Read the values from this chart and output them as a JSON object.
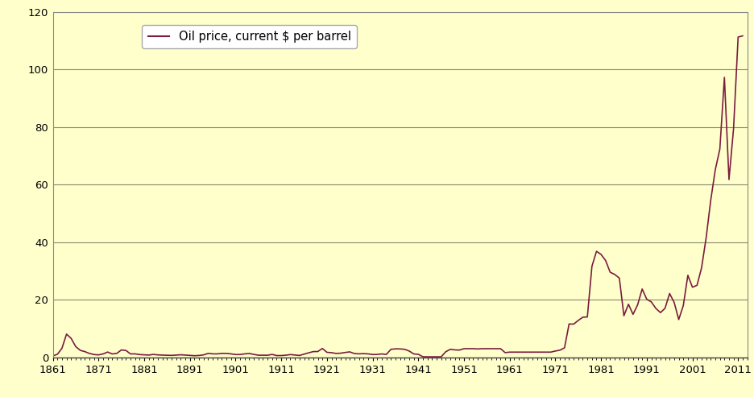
{
  "legend_label": "Oil price, current $ per barrel",
  "line_color": "#7B1C3E",
  "background_color": "#FFFFCC",
  "grid_color": "#888870",
  "ylim": [
    0,
    120
  ],
  "yticks": [
    0,
    20,
    40,
    60,
    80,
    100,
    120
  ],
  "xlim": [
    1861,
    2013
  ],
  "xtick_positions": [
    1861,
    1871,
    1881,
    1891,
    1901,
    1911,
    1921,
    1931,
    1941,
    1951,
    1961,
    1971,
    1981,
    1991,
    2001,
    2011
  ],
  "xtick_labels": [
    "1861",
    "1871",
    "1881",
    "1891",
    "1901",
    "1911",
    "1921",
    "1931",
    "1941",
    "1951",
    "1961",
    "1971",
    "1981",
    "1991",
    "2001",
    "2011"
  ],
  "years": [
    1861,
    1862,
    1863,
    1864,
    1865,
    1866,
    1867,
    1868,
    1869,
    1870,
    1871,
    1872,
    1873,
    1874,
    1875,
    1876,
    1877,
    1878,
    1879,
    1880,
    1881,
    1882,
    1883,
    1884,
    1885,
    1886,
    1887,
    1888,
    1889,
    1890,
    1891,
    1892,
    1893,
    1894,
    1895,
    1896,
    1897,
    1898,
    1899,
    1900,
    1901,
    1902,
    1903,
    1904,
    1905,
    1906,
    1907,
    1908,
    1909,
    1910,
    1911,
    1912,
    1913,
    1914,
    1915,
    1916,
    1917,
    1918,
    1919,
    1920,
    1921,
    1922,
    1923,
    1924,
    1925,
    1926,
    1927,
    1928,
    1929,
    1930,
    1931,
    1932,
    1933,
    1934,
    1935,
    1936,
    1937,
    1938,
    1939,
    1940,
    1941,
    1942,
    1943,
    1944,
    1945,
    1946,
    1947,
    1948,
    1949,
    1950,
    1951,
    1952,
    1953,
    1954,
    1955,
    1956,
    1957,
    1958,
    1959,
    1960,
    1961,
    1962,
    1963,
    1964,
    1965,
    1966,
    1967,
    1968,
    1969,
    1970,
    1971,
    1972,
    1973,
    1974,
    1975,
    1976,
    1977,
    1978,
    1979,
    1980,
    1981,
    1982,
    1983,
    1984,
    1985,
    1986,
    1987,
    1988,
    1989,
    1990,
    1991,
    1992,
    1993,
    1994,
    1995,
    1996,
    1997,
    1998,
    1999,
    2000,
    2001,
    2002,
    2003,
    2004,
    2005,
    2006,
    2007,
    2008,
    2009,
    2010,
    2011,
    2012
  ],
  "prices": [
    0.49,
    1.05,
    3.15,
    8.06,
    6.59,
    3.74,
    2.41,
    1.98,
    1.35,
    0.96,
    0.84,
    1.17,
    1.83,
    1.17,
    1.35,
    2.56,
    2.38,
    1.17,
    1.19,
    0.95,
    0.86,
    0.78,
    1.0,
    0.84,
    0.77,
    0.71,
    0.67,
    0.77,
    0.88,
    0.77,
    0.67,
    0.56,
    0.64,
    0.84,
    1.36,
    1.19,
    1.19,
    1.35,
    1.35,
    1.19,
    0.96,
    0.97,
    1.19,
    1.33,
    1.0,
    0.73,
    0.72,
    0.72,
    1.0,
    0.61,
    0.61,
    0.74,
    0.95,
    0.81,
    0.64,
    1.1,
    1.56,
    1.98,
    2.01,
    3.07,
    1.73,
    1.61,
    1.34,
    1.43,
    1.68,
    1.88,
    1.3,
    1.2,
    1.27,
    1.19,
    0.96,
    1.0,
    1.17,
    1.0,
    2.77,
    2.94,
    2.92,
    2.77,
    2.18,
    1.17,
    1.04,
    0.2,
    0.18,
    0.18,
    0.18,
    0.18,
    1.93,
    2.77,
    2.57,
    2.51,
    3.0,
    3.0,
    3.0,
    2.9,
    3.0,
    3.0,
    3.0,
    3.0,
    3.0,
    1.63,
    1.8,
    1.8,
    1.8,
    1.8,
    1.8,
    1.8,
    1.8,
    1.8,
    1.8,
    1.8,
    2.18,
    2.48,
    3.29,
    11.58,
    11.53,
    12.8,
    13.92,
    14.02,
    31.61,
    36.83,
    35.75,
    33.6,
    29.55,
    28.78,
    27.51,
    14.43,
    18.44,
    14.92,
    18.23,
    23.73,
    20.18,
    19.25,
    16.97,
    15.53,
    17.02,
    22.16,
    19.09,
    13.11,
    17.97,
    28.5,
    24.35,
    25.01,
    31.1,
    41.51,
    54.53,
    65.14,
    72.34,
    97.26,
    61.74,
    79.41,
    111.26,
    111.67
  ]
}
